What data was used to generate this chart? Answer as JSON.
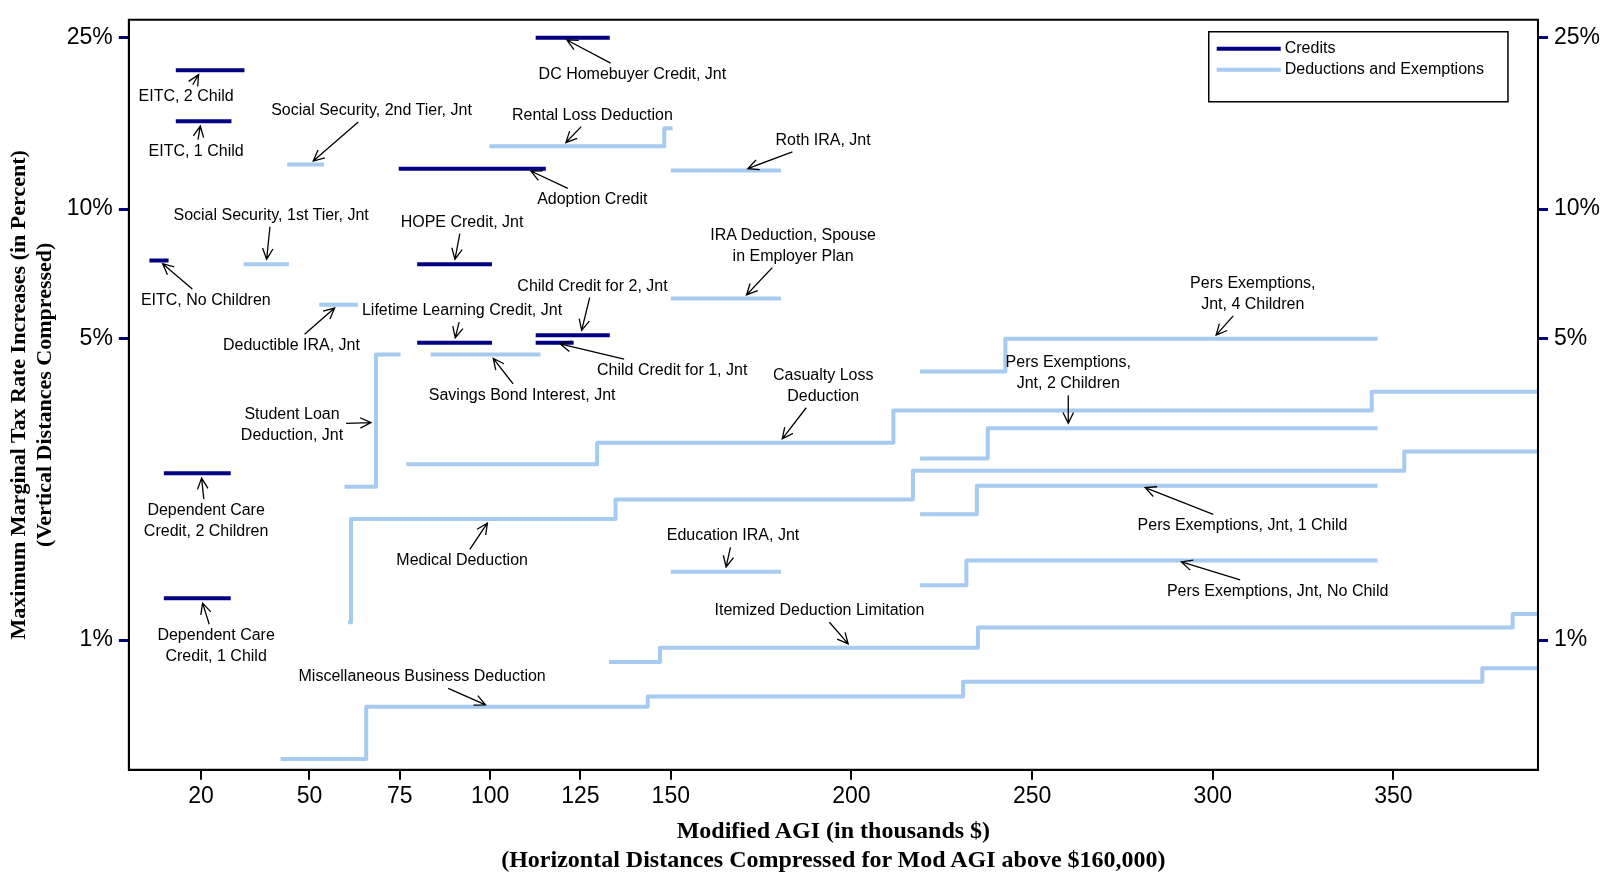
{
  "chart_data": {
    "type": "line",
    "xlabel": "Modified AGI (in thousands $)\n(Horizontal Distances Compressed for Mod AGI above $160,000)",
    "ylabel": "Maximum Marginal Tax Rate Increases (in Percent)\n(Vertical Distances Compressed)",
    "xlim": [
      0,
      390
    ],
    "xticks": [
      20,
      50,
      75,
      100,
      125,
      150,
      200,
      250,
      300,
      350
    ],
    "ylim": [
      0.5,
      27.5
    ],
    "yticks": [
      {
        "value": 1,
        "label": "1%"
      },
      {
        "value": 5,
        "label": "5%"
      },
      {
        "value": 10,
        "label": "10%"
      },
      {
        "value": 25,
        "label": "25%"
      }
    ],
    "log": true,
    "grid": false,
    "legend": "top right",
    "series": [
      {
        "name": "Credits",
        "color": "#000080",
        "x": [
          13,
          32
        ],
        "values": [
          21,
          21
        ]
      },
      {
        "color": "#000080",
        "x": [
          13,
          28.4
        ],
        "values": [
          16,
          16
        ]
      },
      {
        "color": "#000080",
        "x": [
          5.7,
          11
        ],
        "values": [
          7.6,
          7.6
        ]
      },
      {
        "color": "#000080",
        "x": [
          74.7,
          115.4
        ],
        "values": [
          12.4,
          12.4
        ]
      },
      {
        "color": "#000080",
        "x": [
          79.8,
          100.5
        ],
        "values": [
          7.45,
          7.45
        ]
      },
      {
        "color": "#000080",
        "x": [
          79.8,
          100.5
        ],
        "values": [
          4.9,
          4.9
        ]
      },
      {
        "color": "#000080",
        "x": [
          112.6,
          133.1
        ],
        "values": [
          5.1,
          5.1
        ]
      },
      {
        "color": "#000080",
        "x": [
          112.6,
          123.1
        ],
        "values": [
          4.9,
          4.9
        ]
      },
      {
        "color": "#000080",
        "x": [
          112.6,
          133.1
        ],
        "values": [
          25,
          25
        ]
      },
      {
        "color": "#000080",
        "x": [
          9.7,
          28.2
        ],
        "values": [
          2.44,
          2.44
        ]
      },
      {
        "color": "#000080",
        "x": [
          9.7,
          28.2
        ],
        "values": [
          1.25,
          1.25
        ]
      },
      {
        "name": "Deductions and Exemptions",
        "color": "#a6caf0",
        "x": [
          43.8,
          54
        ],
        "values": [
          12.7,
          12.7
        ]
      },
      {
        "color": "#a6caf0",
        "x": [
          31.8,
          44.3
        ],
        "values": [
          7.45,
          7.45
        ]
      },
      {
        "color": "#a6caf0",
        "x": [
          52.7,
          63.4
        ],
        "values": [
          6,
          6
        ]
      },
      {
        "color": "#a6caf0",
        "x": [
          83.5,
          113.9
        ],
        "values": [
          4.6,
          4.6
        ]
      },
      {
        "color": "#a6caf0",
        "x": [
          59.7,
          68.4,
          68.4,
          75.2
        ],
        "values": [
          2.27,
          2.27,
          4.6,
          4.6
        ]
      },
      {
        "color": "#a6caf0",
        "x": [
          99.8,
          148.2,
          148.2,
          150.5
        ],
        "values": [
          14,
          14,
          15.4,
          15.4
        ]
      },
      {
        "color": "#a6caf0",
        "x": [
          150,
          180.5
        ],
        "values": [
          12.3,
          12.3
        ]
      },
      {
        "color": "#a6caf0",
        "x": [
          150,
          180.5
        ],
        "values": [
          6.2,
          6.2
        ]
      },
      {
        "color": "#a6caf0",
        "x": [
          150,
          180.5
        ],
        "values": [
          1.44,
          1.44
        ]
      },
      {
        "color": "#a6caf0",
        "x": [
          219,
          242.6,
          242.6,
          345.6
        ],
        "values": [
          4.2,
          4.2,
          5,
          5
        ]
      },
      {
        "color": "#a6caf0",
        "x": [
          76.8,
          129.6,
          129.6,
          211.6,
          211.6,
          344,
          344,
          390
        ],
        "values": [
          2.56,
          2.56,
          2.87,
          2.87,
          3.41,
          3.41,
          3.77,
          3.77
        ]
      },
      {
        "color": "#a6caf0",
        "x": [
          219,
          237.7,
          237.7,
          345.6
        ],
        "values": [
          2.64,
          2.64,
          3.1,
          3.1
        ]
      },
      {
        "color": "#a6caf0",
        "x": [
          60.7,
          61.5,
          61.5,
          134.7,
          134.7,
          217,
          217,
          353,
          353,
          390
        ],
        "values": [
          1.1,
          1.1,
          1.91,
          1.91,
          2.12,
          2.12,
          2.47,
          2.47,
          2.74,
          2.74
        ]
      },
      {
        "color": "#a6caf0",
        "x": [
          219,
          234.7,
          234.7,
          345.6
        ],
        "values": [
          1.96,
          1.96,
          2.28,
          2.28
        ]
      },
      {
        "color": "#a6caf0",
        "x": [
          219,
          231.8,
          231.8,
          345.6
        ],
        "values": [
          1.34,
          1.34,
          1.53,
          1.53
        ]
      },
      {
        "color": "#a6caf0",
        "x": [
          132.9,
          147,
          147,
          235,
          235,
          383,
          383,
          390
        ],
        "values": [
          0.89,
          0.89,
          0.96,
          0.96,
          1.07,
          1.07,
          1.15,
          1.15
        ]
      },
      {
        "color": "#a6caf0",
        "x": [
          42,
          65.7,
          65.7,
          143.6,
          143.6,
          230.9,
          230.9,
          374.6,
          374.6,
          390
        ],
        "values": [
          0.53,
          0.53,
          0.7,
          0.7,
          0.74,
          0.74,
          0.8,
          0.8,
          0.86,
          0.86
        ]
      }
    ],
    "annotations": [
      {
        "text": "EITC, 2 Child",
        "x": 20,
        "y": 21
      },
      {
        "text": "EITC, 1 Child",
        "x": 20,
        "y": 16
      },
      {
        "text": "Social Security, 2nd Tier, Jnt",
        "x": 50,
        "y": 12.7
      },
      {
        "text": "Social Security, 1st Tier, Jnt",
        "x": 38,
        "y": 7.45
      },
      {
        "text": "EITC, No Children",
        "x": 8.3,
        "y": 7.6
      },
      {
        "text": "HOPE Credit, Jnt",
        "x": 90,
        "y": 7.45
      },
      {
        "text": "Adoption Credit",
        "x": 110,
        "y": 12.4
      },
      {
        "text": "Deductible IRA, Jnt",
        "x": 58,
        "y": 6
      },
      {
        "text": "Lifetime Learning Credit, Jnt",
        "x": 90,
        "y": 4.9
      },
      {
        "text": "Savings Bond Interest, Jnt",
        "x": 100,
        "y": 4.6
      },
      {
        "text": "Student Loan\nDeduction, Jnt",
        "x": 68.4,
        "y": 3.2
      },
      {
        "text": "Medical Deduction",
        "x": 100,
        "y": 1.91
      },
      {
        "text": "Miscellaneous Business Deduction",
        "x": 100,
        "y": 0.7
      },
      {
        "text": "Dependent Care\nCredit, 2 Children",
        "x": 20,
        "y": 2.44
      },
      {
        "text": "Dependent Care\nCredit, 1 Child",
        "x": 20,
        "y": 1.25
      },
      {
        "text": "DC Homebuyer Credit, Jnt",
        "x": 120,
        "y": 25
      },
      {
        "text": "Rental Loss Deduction",
        "x": 120,
        "y": 14
      },
      {
        "text": "Roth IRA, Jnt",
        "x": 170,
        "y": 12.3
      },
      {
        "text": "IRA Deduction, Spouse\nin Employer Plan",
        "x": 170,
        "y": 6.2
      },
      {
        "text": "Child Credit for 2, Jnt",
        "x": 125,
        "y": 5.1
      },
      {
        "text": "Child Credit for 1, Jnt",
        "x": 118,
        "y": 4.9
      },
      {
        "text": "Casualty Loss\nDeduction",
        "x": 180,
        "y": 2.87
      },
      {
        "text": "Pers Exemptions,\nJnt, 2 Children",
        "x": 260,
        "y": 3.1
      },
      {
        "text": "Pers Exemptions,\nJnt, 4 Children",
        "x": 300,
        "y": 5
      },
      {
        "text": "Education IRA, Jnt",
        "x": 165,
        "y": 1.44
      },
      {
        "text": "Pers Exemptions, Jnt, 1 Child",
        "x": 280,
        "y": 2.28
      },
      {
        "text": "Pers Exemptions, Jnt, No Child",
        "x": 290,
        "y": 1.53
      },
      {
        "text": "Itemized Deduction Limitation",
        "x": 200,
        "y": 0.96
      }
    ]
  }
}
